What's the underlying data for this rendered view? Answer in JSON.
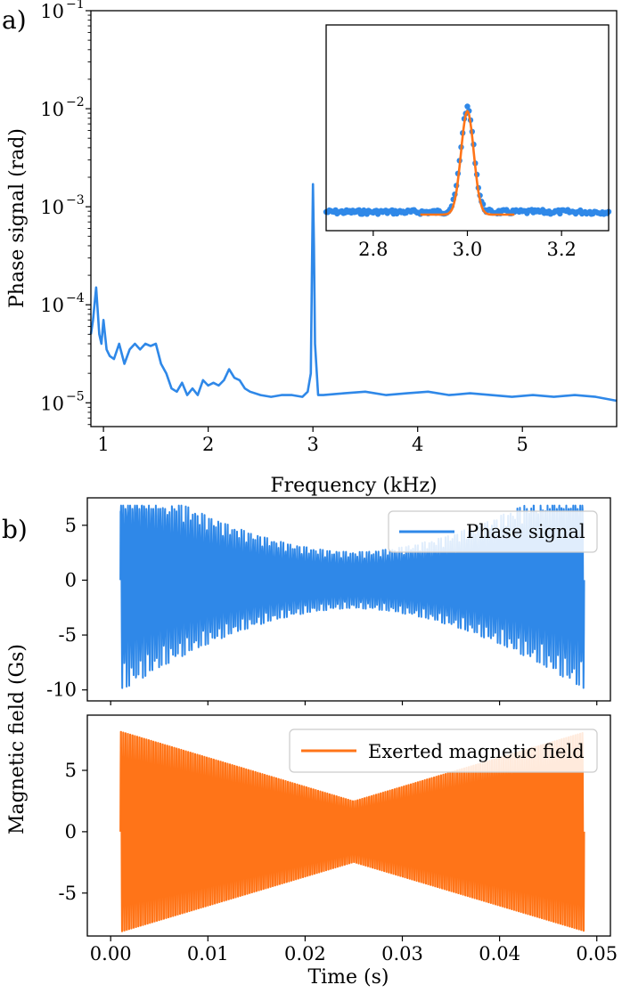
{
  "colors": {
    "phase": "#2f88e8",
    "field": "#ff7418",
    "axis": "#000000",
    "legend_border": "#cccccc"
  },
  "chart_data": [
    {
      "panel_label": "a)",
      "type": "line",
      "yscale": "log",
      "xlabel": "Frequency (kHz)",
      "ylabel": "Phase signal (rad)",
      "xlim": [
        0.88,
        5.9
      ],
      "ylim": [
        5.72e-06,
        0.1
      ],
      "xticks": [
        1,
        2,
        3,
        4,
        5
      ],
      "xtick_labels": [
        "1",
        "2",
        "3",
        "4",
        "5"
      ],
      "ytick_labels": [
        {
          "base": "10",
          "exp": "−5"
        },
        {
          "base": "10",
          "exp": "−4"
        },
        {
          "base": "10",
          "exp": "−3"
        },
        {
          "base": "10",
          "exp": "−2"
        },
        {
          "base": "10",
          "exp": "−1"
        }
      ],
      "series": [
        {
          "x": [
            0.88,
            0.9,
            0.93,
            0.96,
            0.98,
            1.0,
            1.03,
            1.06,
            1.1,
            1.15,
            1.2,
            1.25,
            1.3,
            1.35,
            1.4,
            1.45,
            1.5,
            1.55,
            1.6,
            1.65,
            1.7,
            1.75,
            1.8,
            1.85,
            1.9,
            1.95,
            2.0,
            2.05,
            2.1,
            2.15,
            2.2,
            2.25,
            2.3,
            2.35,
            2.4,
            2.5,
            2.6,
            2.7,
            2.8,
            2.9,
            2.95,
            2.98,
            2.99,
            3.0,
            3.01,
            3.02,
            3.05,
            3.1,
            3.3,
            3.5,
            3.7,
            3.9,
            4.1,
            4.3,
            4.5,
            4.7,
            4.9,
            5.1,
            5.3,
            5.5,
            5.7,
            5.9
          ],
          "y": [
            5e-05,
            7e-05,
            0.00015,
            5e-05,
            4e-05,
            7e-05,
            3.5e-05,
            3e-05,
            2.8e-05,
            4e-05,
            2.5e-05,
            3.5e-05,
            4e-05,
            3.5e-05,
            4e-05,
            3.8e-05,
            4e-05,
            2.5e-05,
            2e-05,
            1.4e-05,
            1.3e-05,
            1.6e-05,
            1.2e-05,
            1.4e-05,
            1.2e-05,
            1.7e-05,
            1.5e-05,
            1.6e-05,
            1.5e-05,
            1.7e-05,
            2.2e-05,
            1.8e-05,
            1.7e-05,
            1.4e-05,
            1.3e-05,
            1.2e-05,
            1.15e-05,
            1.2e-05,
            1.2e-05,
            1.15e-05,
            1.3e-05,
            2e-05,
            0.0002,
            0.0017,
            0.0004,
            4e-05,
            1.2e-05,
            1.2e-05,
            1.25e-05,
            1.3e-05,
            1.2e-05,
            1.25e-05,
            1.3e-05,
            1.2e-05,
            1.25e-05,
            1.2e-05,
            1.15e-05,
            1.2e-05,
            1.15e-05,
            1.2e-05,
            1.15e-05,
            1.05e-05
          ]
        }
      ],
      "inset": {
        "type": "scatter+line",
        "xlim": [
          2.7,
          3.3
        ],
        "xticks": [
          2.8,
          3.0,
          3.2
        ],
        "xtick_labels": [
          "2.8",
          "3.0",
          "3.2"
        ],
        "scatter": {
          "center": 3.0,
          "sigma": 0.014,
          "peak": 1.0
        },
        "fit": {
          "x_range": [
            2.9,
            3.1
          ],
          "center": 3.0,
          "sigma": 0.0135
        }
      }
    },
    {
      "panel_label": "b)",
      "type": "line",
      "xlim": [
        -0.0024,
        0.0514
      ],
      "ylim": [
        -11,
        7.5
      ],
      "yticks": [
        5,
        0,
        -5,
        -10
      ],
      "ytick_labels": [
        "5",
        "0",
        "-5",
        "-10"
      ],
      "legend": {
        "label": "Phase signal",
        "location": "upper right"
      },
      "signal": {
        "t_start": 0.001,
        "t_end": 0.0487,
        "amplitude_edge_low": -10.5,
        "amplitude_edge_high": 6.8,
        "amplitude_mid": 2.7
      }
    },
    {
      "type": "line",
      "xlabel": "Time (s)",
      "ylabel": "Magnetic field (Gs)",
      "xlim": [
        -0.0024,
        0.0514
      ],
      "ylim": [
        -8.5,
        9.5
      ],
      "yticks": [
        5,
        0,
        -5
      ],
      "ytick_labels": [
        "5",
        "0",
        "-5"
      ],
      "xticks": [
        0.0,
        0.01,
        0.02,
        0.03,
        0.04,
        0.05
      ],
      "xtick_labels": [
        "0.00",
        "0.01",
        "0.02",
        "0.03",
        "0.04",
        "0.05"
      ],
      "legend": {
        "label": "Exerted magnetic field",
        "location": "upper right"
      },
      "signal": {
        "t_start": 0.001,
        "t_end": 0.0487,
        "amplitude_edge": 8.5,
        "amplitude_mid": 2.6
      }
    }
  ]
}
